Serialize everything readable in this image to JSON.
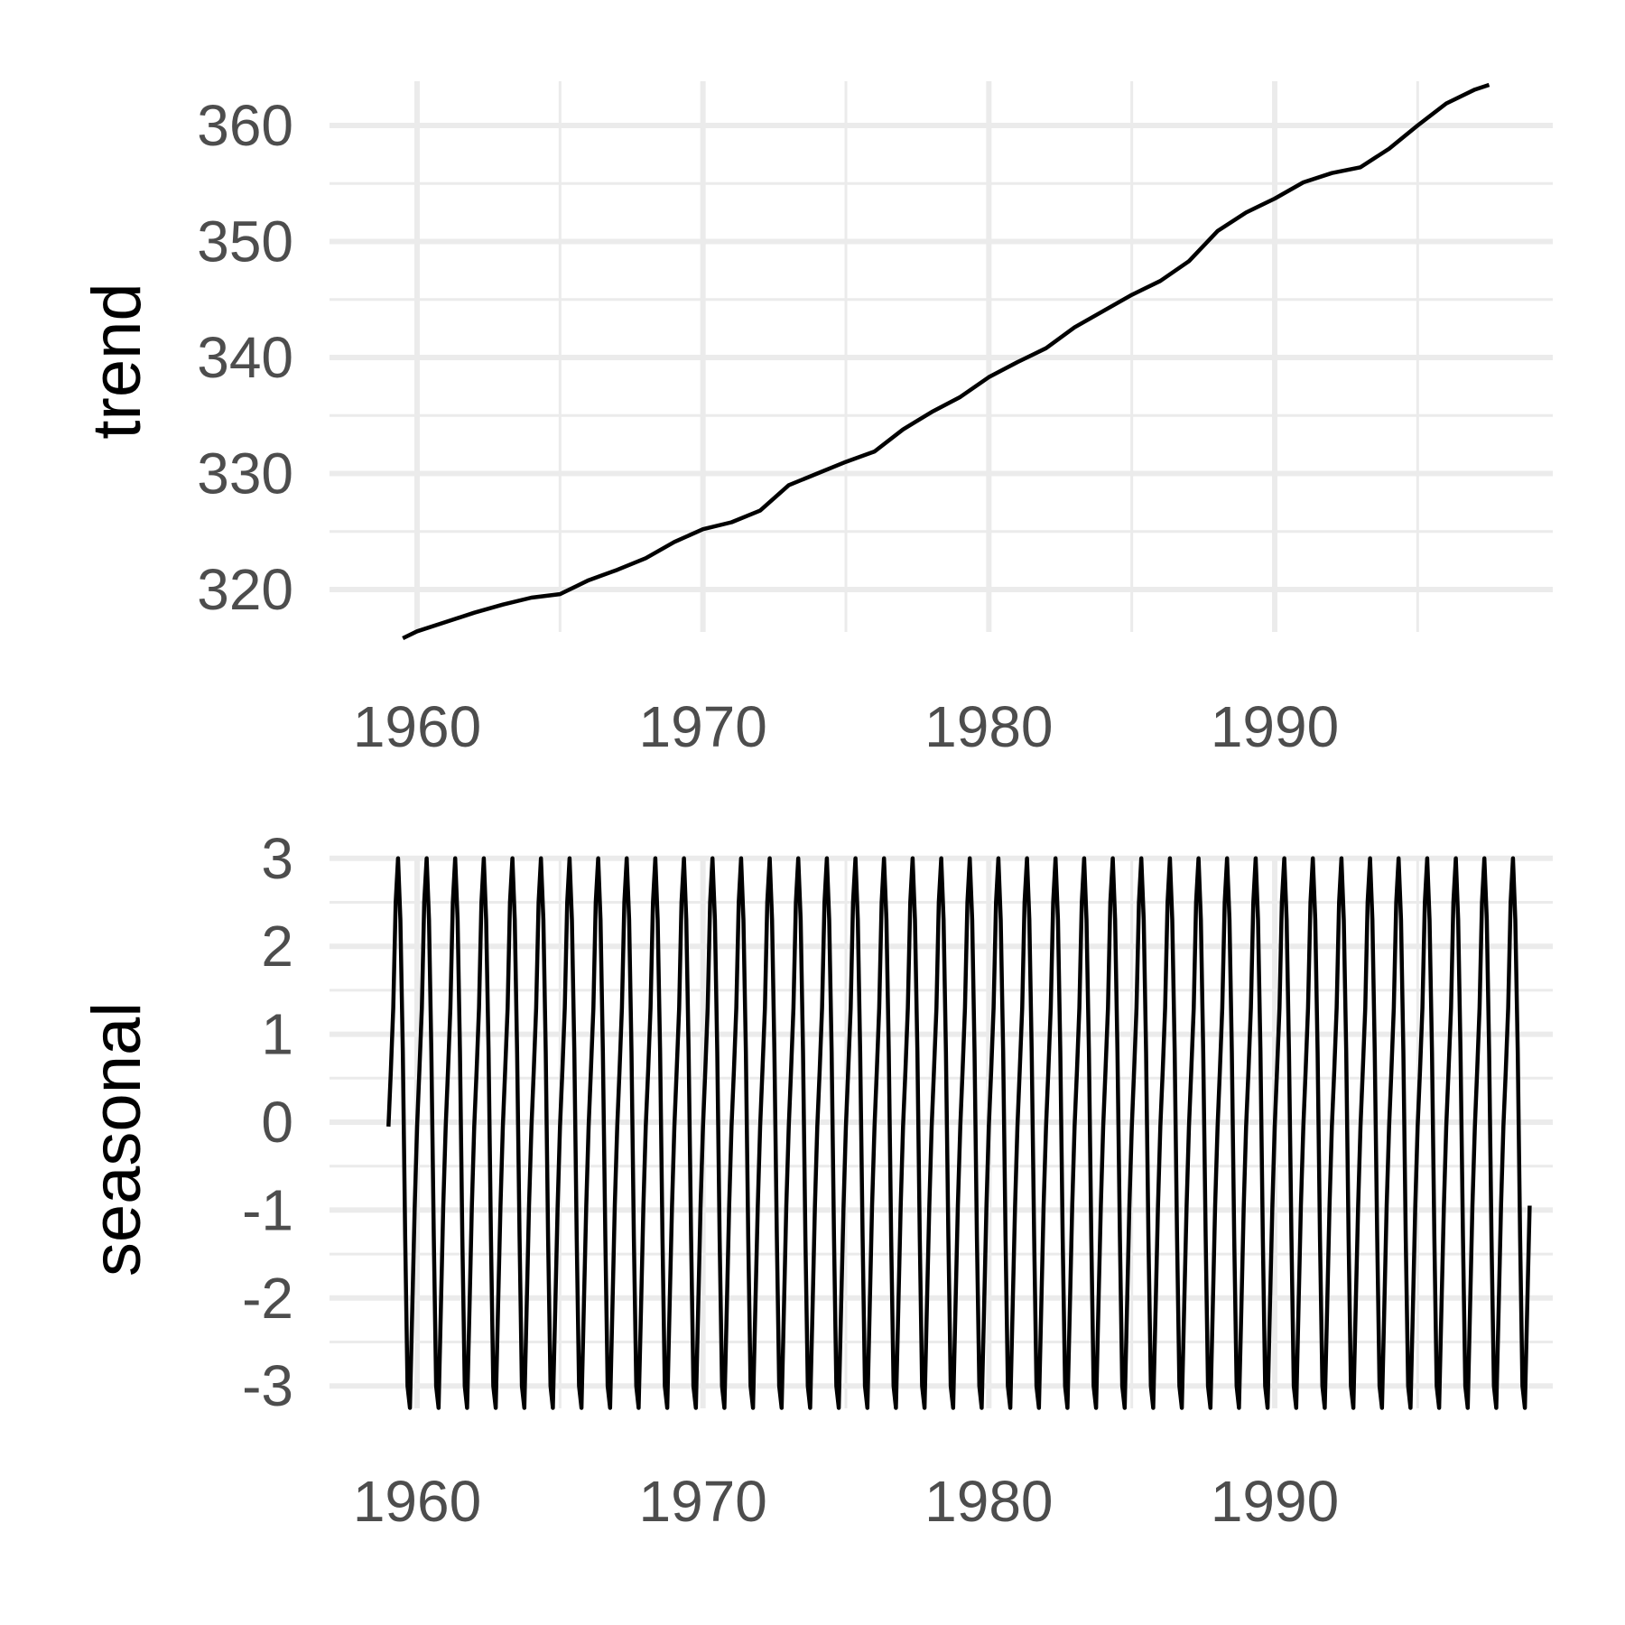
{
  "chart_data": [
    {
      "type": "line",
      "ylabel": "trend",
      "xlabel": "",
      "xlim": [
        1956.3,
        1999.5
      ],
      "ylim": [
        315.5,
        363.8
      ],
      "x_ticks": [
        1960,
        1970,
        1980,
        1990
      ],
      "x_tick_labels": [
        "1960",
        "1970",
        "1980",
        "1990"
      ],
      "y_ticks": [
        320,
        330,
        340,
        350,
        360
      ],
      "y_tick_labels": [
        "320",
        "330",
        "340",
        "350",
        "360"
      ],
      "grid": true,
      "series": [
        {
          "x": [
            1959.5,
            1960,
            1961,
            1962,
            1963,
            1964,
            1965,
            1966,
            1967,
            1968,
            1969,
            1970,
            1971,
            1972,
            1973,
            1974,
            1975,
            1976,
            1977,
            1978,
            1979,
            1980,
            1981,
            1982,
            1983,
            1984,
            1985,
            1986,
            1987,
            1988,
            1989,
            1990,
            1991,
            1992,
            1993,
            1994,
            1995,
            1996,
            1997,
            1997.5
          ],
          "values": [
            315.8,
            316.4,
            317.2,
            318.0,
            318.7,
            319.3,
            319.6,
            320.8,
            321.7,
            322.7,
            324.1,
            325.2,
            325.8,
            326.8,
            329.0,
            330.0,
            331.0,
            331.9,
            333.8,
            335.3,
            336.6,
            338.3,
            339.6,
            340.8,
            342.6,
            344.0,
            345.4,
            346.6,
            348.3,
            350.9,
            352.5,
            353.7,
            355.1,
            355.9,
            356.4,
            358.0,
            360.0,
            361.9,
            363.1,
            363.5
          ]
        }
      ]
    },
    {
      "type": "line",
      "ylabel": "seasonal",
      "xlabel": "",
      "xlim": [
        1956.3,
        1999.5
      ],
      "ylim": [
        -3.25,
        3.0
      ],
      "x_ticks": [
        1960,
        1970,
        1980,
        1990
      ],
      "x_tick_labels": [
        "1960",
        "1970",
        "1980",
        "1990"
      ],
      "y_ticks": [
        -3,
        -2,
        -1,
        0,
        1,
        2,
        3
      ],
      "y_tick_labels": [
        "-3",
        "-2",
        "-1",
        "0",
        "1",
        "2",
        "3"
      ],
      "grid": true,
      "start_year": 1959,
      "end_year": 1998,
      "monthly_pattern": [
        -0.05,
        0.6,
        1.3,
        2.5,
        3.0,
        2.3,
        0.8,
        -1.3,
        -3.0,
        -3.25,
        -2.1,
        -0.95
      ]
    }
  ]
}
